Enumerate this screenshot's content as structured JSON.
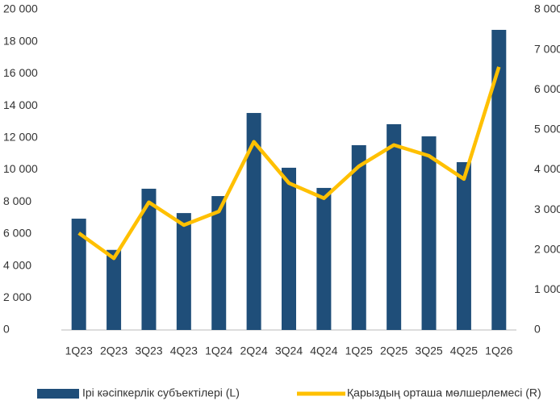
{
  "chart_data": {
    "type": "bar-line",
    "categories": [
      "1Q23",
      "2Q23",
      "3Q23",
      "4Q23",
      "1Q24",
      "2Q24",
      "3Q24",
      "4Q24",
      "1Q25",
      "2Q25",
      "3Q25",
      "4Q25",
      "1Q26"
    ],
    "series": [
      {
        "name": "Ірі кәсіпкерлік субъектілері (L)",
        "type": "bar",
        "color": "#1f4e79",
        "axis": "y",
        "values": [
          6950,
          5000,
          8820,
          7300,
          8360,
          13550,
          10130,
          8870,
          11540,
          12850,
          12090,
          10480,
          18740
        ]
      },
      {
        "name": "Қарыздың орташа мөлшерлемесі (R)",
        "type": "line",
        "color": "#ffc000",
        "axis": "y2",
        "values": [
          2420,
          1790,
          3190,
          2620,
          2960,
          4700,
          3670,
          3290,
          4090,
          4620,
          4350,
          3770,
          6570
        ]
      }
    ],
    "ylim": [
      0,
      20000
    ],
    "yticks": [
      0,
      {
        "value": 2000,
        "label": "2 000"
      },
      {
        "value": 4000,
        "label": "4 000"
      },
      {
        "value": 6000,
        "label": "6 000"
      },
      {
        "value": 8000,
        "label": "8 000"
      },
      {
        "value": 10000,
        "label": "10 000"
      },
      {
        "value": 12000,
        "label": "12 000"
      },
      {
        "value": 14000,
        "label": "14 000"
      },
      {
        "value": 16000,
        "label": "16 000"
      },
      {
        "value": 18000,
        "label": "18 000"
      },
      {
        "value": 20000,
        "label": "20 000"
      }
    ],
    "y2lim": [
      0,
      8000
    ],
    "y2ticks": [
      0,
      {
        "value": 1000,
        "label": "1 000"
      },
      {
        "value": 2000,
        "label": "2 000"
      },
      {
        "value": 3000,
        "label": "3 000"
      },
      {
        "value": 4000,
        "label": "4 000"
      },
      {
        "value": 5000,
        "label": "5 000"
      },
      {
        "value": 6000,
        "label": "6 000"
      },
      {
        "value": 7000,
        "label": "7 000"
      },
      {
        "value": 8000,
        "label": "8 000"
      }
    ],
    "grid": false,
    "legend": "bottom"
  }
}
